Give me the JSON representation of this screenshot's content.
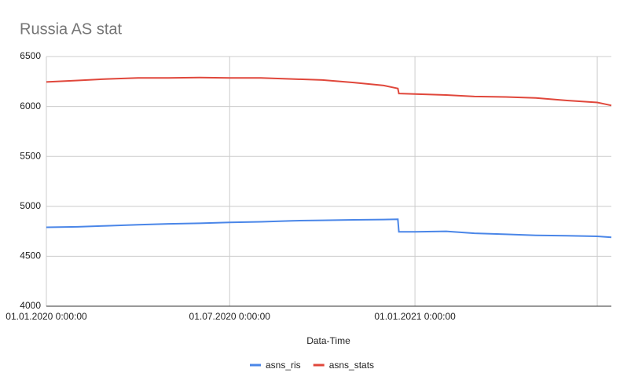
{
  "chart_data": {
    "type": "line",
    "title": "Russia AS stat",
    "x_label": "Data-Time",
    "x": [
      "01.01.2020",
      "01.02.2020",
      "01.03.2020",
      "01.04.2020",
      "01.05.2020",
      "01.06.2020",
      "01.07.2020",
      "01.08.2020",
      "01.09.2020",
      "01.10.2020",
      "01.11.2020",
      "01.12.2020",
      "15.12.2020",
      "16.12.2020",
      "01.01.2021",
      "01.02.2021",
      "01.03.2021",
      "01.04.2021",
      "01.05.2021",
      "01.06.2021",
      "01.07.2021",
      "15.07.2021"
    ],
    "series": [
      {
        "name": "asns_ris",
        "color": "#4a86e8",
        "values": [
          4790,
          4795,
          4805,
          4815,
          4825,
          4830,
          4840,
          4845,
          4855,
          4860,
          4865,
          4868,
          4870,
          4745,
          4745,
          4750,
          4730,
          4720,
          4710,
          4705,
          4700,
          4690
        ]
      },
      {
        "name": "asns_stats",
        "color": "#e0473b",
        "values": [
          6245,
          6260,
          6275,
          6285,
          6285,
          6290,
          6285,
          6285,
          6275,
          6265,
          6240,
          6210,
          6180,
          6130,
          6125,
          6115,
          6100,
          6095,
          6085,
          6060,
          6040,
          6010
        ]
      }
    ],
    "xlim": [
      "01.01.2020",
      "15.07.2021"
    ],
    "xticks": [
      {
        "value": "01.01.2020",
        "label": "01.01.2020 0:00:00"
      },
      {
        "value": "01.07.2020",
        "label": "01.07.2020 0:00:00"
      },
      {
        "value": "01.01.2021",
        "label": "01.01.2021 0:00:00"
      },
      {
        "value": "01.07.2021",
        "label": null
      }
    ],
    "ylim": [
      4000,
      6500
    ],
    "yticks": [
      4000,
      4500,
      5000,
      5500,
      6000,
      6500
    ],
    "grid": true
  }
}
